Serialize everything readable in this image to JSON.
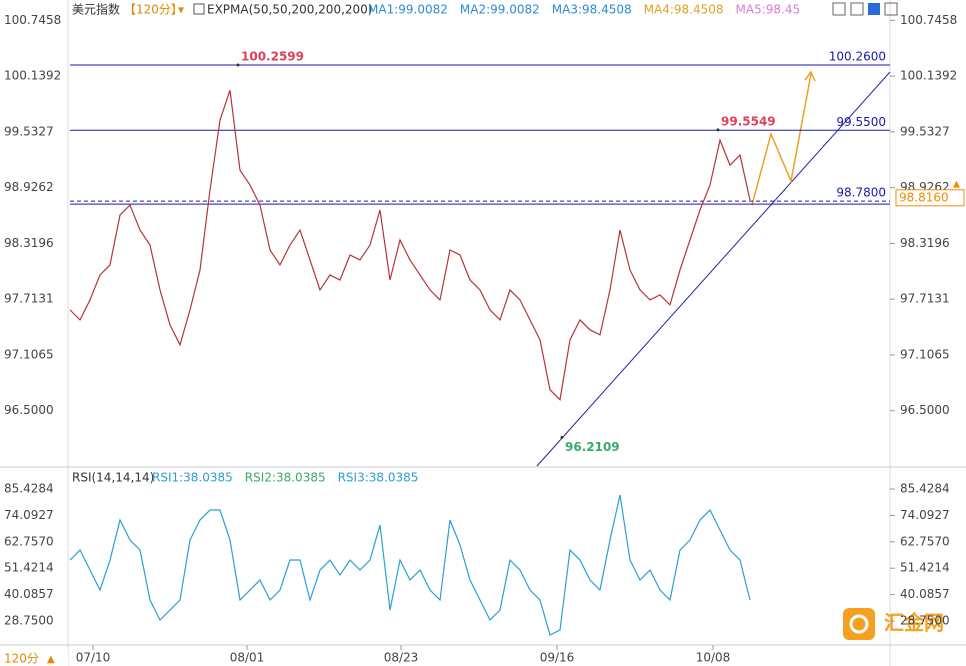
{
  "chart_data": [
    {
      "type": "line",
      "title": "美元指数",
      "period": "【120分】",
      "indicator": "EXPMA(50,50,200,200,200)",
      "indicator_values": [
        "MA1:99.0082",
        "MA2:99.0082",
        "MA3:98.4508",
        "MA4:98.4508",
        "MA5:98.45"
      ],
      "indicator_colors": [
        "#2a8bd6",
        "#2a8bd6",
        "#2a8bd6",
        "#e2a020",
        "#d77bd7"
      ],
      "xlim": [
        0,
        82
      ],
      "xticks": [
        {
          "value": 2.3,
          "label": "07/10"
        },
        {
          "value": 17.7,
          "label": "08/01"
        },
        {
          "value": 33.1,
          "label": "08/23"
        },
        {
          "value": 48.7,
          "label": "09/16"
        },
        {
          "value": 64.3,
          "label": "10/08"
        }
      ],
      "ylim": [
        95.91,
        100.88
      ],
      "yticks": [
        100.7458,
        100.1392,
        99.5327,
        98.9262,
        98.3196,
        97.7131,
        97.1065,
        {
          "value": 96.5,
          "label": "96.5000"
        }
      ],
      "series": [
        {
          "color": "#b5343a",
          "values": [
            97.597,
            97.488,
            97.705,
            97.977,
            98.086,
            98.628,
            98.737,
            98.465,
            98.302,
            97.814,
            97.434,
            97.217,
            97.597,
            98.031,
            98.9,
            99.66,
            99.986,
            99.117,
            98.954,
            98.737,
            98.248,
            98.086,
            98.302,
            98.465,
            98.14,
            97.814,
            97.977,
            97.922,
            98.194,
            98.14,
            98.302,
            98.683,
            97.922,
            98.357,
            98.14,
            97.977,
            97.814,
            97.705,
            98.248,
            98.194,
            97.922,
            97.814,
            97.597,
            97.488,
            97.814,
            97.705,
            97.488,
            97.271,
            96.728,
            96.62,
            97.271,
            97.488,
            97.38,
            97.325,
            97.814,
            98.465,
            98.031,
            97.814,
            97.705,
            97.76,
            97.651,
            98.031,
            98.357,
            98.683,
            98.954,
            99.443,
            99.171,
            99.28,
            98.791
          ]
        }
      ],
      "levels": [
        {
          "value": 100.26,
          "label": "100.2600",
          "color": "#1a1aa8"
        },
        {
          "value": 99.55,
          "label": "99.5500",
          "color": "#1a1aa8"
        },
        {
          "value": 98.78,
          "label": "98.7800",
          "color": "#1a1aa8",
          "dashed": true
        }
      ],
      "peaks": [
        {
          "at": 16.8,
          "value": 100.2599,
          "color": "#e0405a",
          "side": "above"
        },
        {
          "at": 64.8,
          "value": 99.5549,
          "color": "#e0405a",
          "side": "above"
        },
        {
          "at": 49.2,
          "value": 96.2109,
          "color": "#3aaa6a",
          "side": "below"
        }
      ],
      "last": {
        "value": 98.816,
        "label": "98.8160",
        "color": "#f08c00"
      }
    },
    {
      "type": "line",
      "title": "RSI(14,14,14)",
      "indicator_values": [
        "RSI1:38.0385",
        "RSI2:38.0385",
        "RSI3:38.0385"
      ],
      "indicator_colors": [
        "#2a9fd6",
        "#3aaa6a",
        "#2a9fd6"
      ],
      "xlim": [
        0,
        82
      ],
      "ylim": [
        20.6,
        93.6
      ],
      "yticks": [
        85.4284,
        74.0927,
        {
          "value": 62.757,
          "label": "62.7570"
        },
        51.4214,
        40.0857,
        {
          "value": 28.75,
          "label": "28.7500"
        }
      ],
      "series": [
        {
          "color": "#2a9fd6",
          "values": [
            54.94,
            59.24,
            50.65,
            42.06,
            54.94,
            72.12,
            63.53,
            59.24,
            37.77,
            29.18,
            33.47,
            37.77,
            63.53,
            72.12,
            76.41,
            76.41,
            63.53,
            37.77,
            42.06,
            46.35,
            37.77,
            42.06,
            54.94,
            54.94,
            37.77,
            50.65,
            54.94,
            48.5,
            54.94,
            50.65,
            54.94,
            69.97,
            33.47,
            54.94,
            46.35,
            50.65,
            42.06,
            37.77,
            72.12,
            61.38,
            46.35,
            37.77,
            29.18,
            33.47,
            54.94,
            50.65,
            42.06,
            37.77,
            22.74,
            24.88,
            59.24,
            54.94,
            46.35,
            42.06,
            63.53,
            82.85,
            54.94,
            46.35,
            50.65,
            42.06,
            37.77,
            59.24,
            63.53,
            72.12,
            76.41,
            67.82,
            59.24,
            54.94,
            37.77
          ]
        }
      ]
    }
  ],
  "footer": "120分",
  "watermark": "汇金网"
}
